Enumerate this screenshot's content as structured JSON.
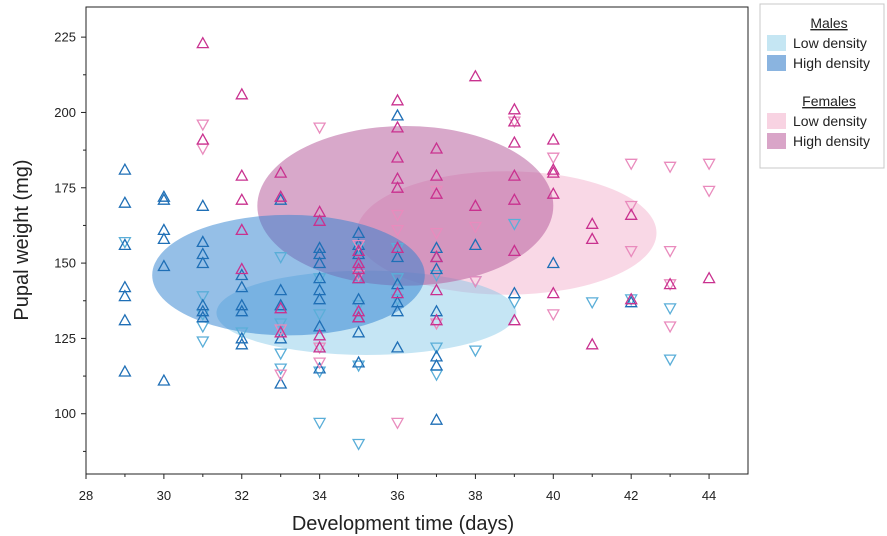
{
  "chart_data": {
    "type": "scatter",
    "title": "",
    "xlabel": "Development time (days)",
    "ylabel": "Pupal weight (mg)",
    "xlim": [
      28,
      45
    ],
    "ylim": [
      80,
      235
    ],
    "xticks": [
      28,
      30,
      32,
      34,
      36,
      38,
      40,
      42,
      44
    ],
    "yticks": [
      100,
      125,
      150,
      175,
      200,
      225
    ],
    "grid": false,
    "legend_position": "right",
    "legend": {
      "groups": [
        {
          "heading": "Males",
          "items": [
            {
              "label": "Low density",
              "color": "#c5e6f3"
            },
            {
              "label": "High density",
              "color": "#8ab4e0"
            }
          ]
        },
        {
          "heading": "Females",
          "items": [
            {
              "label": "Low density",
              "color": "#f8d3e2"
            },
            {
              "label": "High density",
              "color": "#d9a5c8"
            }
          ]
        }
      ]
    },
    "ellipses": [
      {
        "series": "Females low density",
        "cx": 38.8,
        "cy": 160,
        "rx": 3.85,
        "ry": 20.5,
        "color": "#f2a9c8",
        "opacity": 0.45
      },
      {
        "series": "Males low density",
        "cx": 35.2,
        "cy": 133.5,
        "rx": 3.85,
        "ry": 14,
        "color": "#7fc6e6",
        "opacity": 0.45
      },
      {
        "series": "Females high density",
        "cx": 36.2,
        "cy": 169,
        "rx": 3.8,
        "ry": 26.5,
        "color": "#b8609e",
        "opacity": 0.55
      },
      {
        "series": "Males high density",
        "cx": 33.2,
        "cy": 146,
        "rx": 3.5,
        "ry": 20,
        "color": "#2c7fd0",
        "opacity": 0.5
      }
    ],
    "series": [
      {
        "name": "Males, Low density",
        "marker": "triangle-down",
        "color": "#5aaed8",
        "points": [
          [
            29,
            157
          ],
          [
            31,
            124
          ],
          [
            31,
            129
          ],
          [
            31,
            133
          ],
          [
            31,
            139
          ],
          [
            32,
            127
          ],
          [
            33,
            115
          ],
          [
            33,
            120
          ],
          [
            33,
            130
          ],
          [
            33,
            152
          ],
          [
            34,
            97
          ],
          [
            34,
            114
          ],
          [
            34,
            133
          ],
          [
            34,
            145
          ],
          [
            35,
            90
          ],
          [
            35,
            116
          ],
          [
            35,
            136
          ],
          [
            35,
            155
          ],
          [
            36,
            138
          ],
          [
            36,
            145
          ],
          [
            36,
            155
          ],
          [
            37,
            113
          ],
          [
            37,
            122
          ],
          [
            37,
            146
          ],
          [
            38,
            121
          ],
          [
            38,
            144
          ],
          [
            39,
            137
          ],
          [
            39,
            163
          ],
          [
            41,
            137
          ],
          [
            42,
            138
          ],
          [
            43,
            118
          ],
          [
            43,
            135
          ]
        ]
      },
      {
        "name": "Males, High density",
        "marker": "triangle-up",
        "color": "#1f6fb6",
        "points": [
          [
            29,
            114
          ],
          [
            29,
            131
          ],
          [
            29,
            139
          ],
          [
            29,
            142
          ],
          [
            29,
            156
          ],
          [
            29,
            170
          ],
          [
            29,
            181
          ],
          [
            30,
            111
          ],
          [
            30,
            149
          ],
          [
            30,
            158
          ],
          [
            30,
            161
          ],
          [
            30,
            171
          ],
          [
            30,
            172
          ],
          [
            31,
            132
          ],
          [
            31,
            134
          ],
          [
            31,
            136
          ],
          [
            31,
            150
          ],
          [
            31,
            153
          ],
          [
            31,
            157
          ],
          [
            31,
            169
          ],
          [
            32,
            123
          ],
          [
            32,
            125
          ],
          [
            32,
            134
          ],
          [
            32,
            136
          ],
          [
            32,
            142
          ],
          [
            32,
            146
          ],
          [
            33,
            110
          ],
          [
            33,
            125
          ],
          [
            33,
            136
          ],
          [
            33,
            141
          ],
          [
            33,
            171
          ],
          [
            34,
            115
          ],
          [
            34,
            129
          ],
          [
            34,
            138
          ],
          [
            34,
            141
          ],
          [
            34,
            145
          ],
          [
            34,
            150
          ],
          [
            34,
            153
          ],
          [
            34,
            155
          ],
          [
            35,
            117
          ],
          [
            35,
            127
          ],
          [
            35,
            132
          ],
          [
            35,
            138
          ],
          [
            35,
            145
          ],
          [
            35,
            153
          ],
          [
            35,
            156
          ],
          [
            35,
            160
          ],
          [
            36,
            122
          ],
          [
            36,
            134
          ],
          [
            36,
            137
          ],
          [
            36,
            143
          ],
          [
            36,
            152
          ],
          [
            36,
            199
          ],
          [
            37,
            98
          ],
          [
            37,
            116
          ],
          [
            37,
            119
          ],
          [
            37,
            134
          ],
          [
            37,
            148
          ],
          [
            37,
            152
          ],
          [
            37,
            155
          ],
          [
            38,
            156
          ],
          [
            39,
            140
          ],
          [
            40,
            150
          ],
          [
            42,
            137
          ]
        ]
      },
      {
        "name": "Females, Low density",
        "marker": "triangle-down",
        "color": "#e98bbd",
        "points": [
          [
            31,
            188
          ],
          [
            31,
            196
          ],
          [
            33,
            113
          ],
          [
            33,
            128
          ],
          [
            34,
            117
          ],
          [
            34,
            122
          ],
          [
            34,
            195
          ],
          [
            35,
            146
          ],
          [
            35,
            156
          ],
          [
            36,
            97
          ],
          [
            36,
            161
          ],
          [
            36,
            166
          ],
          [
            37,
            130
          ],
          [
            37,
            160
          ],
          [
            37,
            174
          ],
          [
            38,
            144
          ],
          [
            38,
            162
          ],
          [
            39,
            197
          ],
          [
            40,
            133
          ],
          [
            40,
            185
          ],
          [
            42,
            154
          ],
          [
            42,
            169
          ],
          [
            42,
            183
          ],
          [
            43,
            129
          ],
          [
            43,
            143
          ],
          [
            43,
            154
          ],
          [
            43,
            182
          ],
          [
            44,
            174
          ],
          [
            44,
            183
          ]
        ]
      },
      {
        "name": "Females, High density",
        "marker": "triangle-up",
        "color": "#c9318f",
        "points": [
          [
            31,
            191
          ],
          [
            31,
            223
          ],
          [
            32,
            148
          ],
          [
            32,
            161
          ],
          [
            32,
            171
          ],
          [
            32,
            179
          ],
          [
            32,
            206
          ],
          [
            33,
            127
          ],
          [
            33,
            135
          ],
          [
            33,
            172
          ],
          [
            33,
            180
          ],
          [
            34,
            122
          ],
          [
            34,
            126
          ],
          [
            34,
            164
          ],
          [
            34,
            167
          ],
          [
            35,
            132
          ],
          [
            35,
            134
          ],
          [
            35,
            145
          ],
          [
            35,
            148
          ],
          [
            35,
            150
          ],
          [
            35,
            154
          ],
          [
            36,
            140
          ],
          [
            36,
            155
          ],
          [
            36,
            175
          ],
          [
            36,
            178
          ],
          [
            36,
            185
          ],
          [
            36,
            195
          ],
          [
            36,
            204
          ],
          [
            37,
            131
          ],
          [
            37,
            141
          ],
          [
            37,
            152
          ],
          [
            37,
            173
          ],
          [
            37,
            179
          ],
          [
            37,
            188
          ],
          [
            38,
            169
          ],
          [
            38,
            212
          ],
          [
            39,
            131
          ],
          [
            39,
            154
          ],
          [
            39,
            171
          ],
          [
            39,
            179
          ],
          [
            39,
            190
          ],
          [
            39,
            197
          ],
          [
            39,
            201
          ],
          [
            40,
            140
          ],
          [
            40,
            173
          ],
          [
            40,
            180
          ],
          [
            40,
            181
          ],
          [
            40,
            191
          ],
          [
            41,
            123
          ],
          [
            41,
            158
          ],
          [
            41,
            163
          ],
          [
            42,
            138
          ],
          [
            42,
            166
          ],
          [
            43,
            143
          ],
          [
            44,
            145
          ]
        ]
      }
    ]
  }
}
